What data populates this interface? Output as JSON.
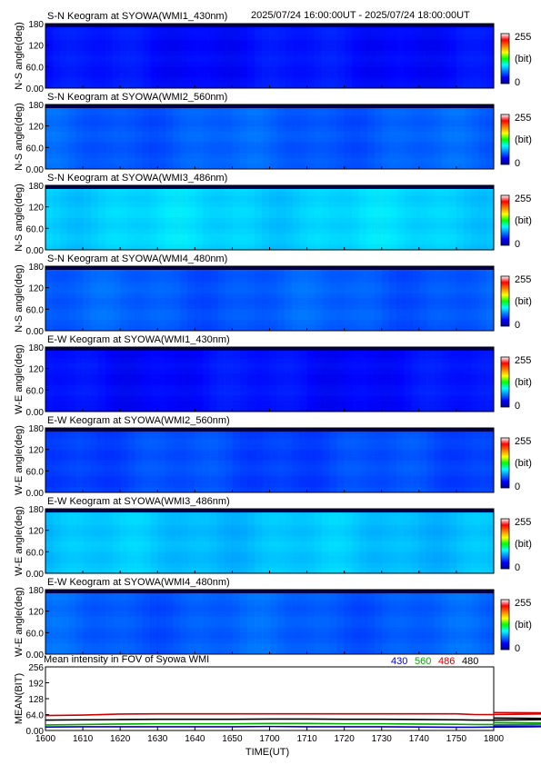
{
  "header": {
    "time_range": "2025/07/24 16:00:00UT - 2025/07/24 18:00:00UT"
  },
  "colorbar": {
    "max_label": "255",
    "unit_label": "(bit)",
    "min_label": "0"
  },
  "chart_data": [
    {
      "type": "heatmap",
      "title": "S-N Keogram at SYOWA(WMI1_430nm)",
      "ylabel": "N-S angle(deg)",
      "yticks": [
        "180",
        "120",
        "60.0",
        "0.00"
      ],
      "ylim": [
        0,
        180
      ],
      "xlim": [
        1600,
        1800
      ],
      "intensity_min": 0,
      "intensity_max": 255,
      "colormap": "jet",
      "typical_intensity": 35
    },
    {
      "type": "heatmap",
      "title": "S-N Keogram at SYOWA(WMI2_560nm)",
      "ylabel": "N-S angle(deg)",
      "yticks": [
        "180",
        "120",
        "60.0",
        "0.00"
      ],
      "ylim": [
        0,
        180
      ],
      "xlim": [
        1600,
        1800
      ],
      "intensity_min": 0,
      "intensity_max": 255,
      "colormap": "jet",
      "typical_intensity": 55
    },
    {
      "type": "heatmap",
      "title": "S-N Keogram at SYOWA(WMI3_486nm)",
      "ylabel": "N-S angle(deg)",
      "yticks": [
        "180",
        "120",
        "60.0",
        "0.00"
      ],
      "ylim": [
        0,
        180
      ],
      "xlim": [
        1600,
        1800
      ],
      "intensity_min": 0,
      "intensity_max": 255,
      "colormap": "jet",
      "typical_intensity": 85
    },
    {
      "type": "heatmap",
      "title": "S-N Keogram at SYOWA(WMI4_480nm)",
      "ylabel": "N-S angle(deg)",
      "yticks": [
        "180",
        "120",
        "60.0",
        "0.00"
      ],
      "ylim": [
        0,
        180
      ],
      "xlim": [
        1600,
        1800
      ],
      "intensity_min": 0,
      "intensity_max": 255,
      "colormap": "jet",
      "typical_intensity": 55
    },
    {
      "type": "heatmap",
      "title": "E-W Keogram at SYOWA(WMI1_430nm)",
      "ylabel": "W-E angle(deg)",
      "yticks": [
        "180",
        "120",
        "60.0",
        "0.00"
      ],
      "ylim": [
        0,
        180
      ],
      "xlim": [
        1600,
        1800
      ],
      "intensity_min": 0,
      "intensity_max": 255,
      "colormap": "jet",
      "typical_intensity": 35
    },
    {
      "type": "heatmap",
      "title": "E-W Keogram at SYOWA(WMI2_560nm)",
      "ylabel": "W-E angle(deg)",
      "yticks": [
        "180",
        "120",
        "60.0",
        "0.00"
      ],
      "ylim": [
        0,
        180
      ],
      "xlim": [
        1600,
        1800
      ],
      "intensity_min": 0,
      "intensity_max": 255,
      "colormap": "jet",
      "typical_intensity": 50
    },
    {
      "type": "heatmap",
      "title": "E-W Keogram at SYOWA(WMI3_486nm)",
      "ylabel": "W-E angle(deg)",
      "yticks": [
        "180",
        "120",
        "60.0",
        "0.00"
      ],
      "ylim": [
        0,
        180
      ],
      "xlim": [
        1600,
        1800
      ],
      "intensity_min": 0,
      "intensity_max": 255,
      "colormap": "jet",
      "typical_intensity": 80
    },
    {
      "type": "heatmap",
      "title": "E-W Keogram at SYOWA(WMI4_480nm)",
      "ylabel": "W-E angle(deg)",
      "yticks": [
        "180",
        "120",
        "60.0",
        "0.00"
      ],
      "ylim": [
        0,
        180
      ],
      "xlim": [
        1600,
        1800
      ],
      "intensity_min": 0,
      "intensity_max": 255,
      "colormap": "jet",
      "typical_intensity": 55
    },
    {
      "type": "line",
      "title": "Mean intensity in FOV of Syowa WMI",
      "xlabel": "TIME(UT)",
      "ylabel": "MEAN(BIT)",
      "xlim": [
        1600,
        1800
      ],
      "ylim": [
        0,
        256
      ],
      "xticks": [
        "1600",
        "1610",
        "1620",
        "1630",
        "1640",
        "1650",
        "1700",
        "1710",
        "1720",
        "1730",
        "1740",
        "1750",
        "1800"
      ],
      "yticks": [
        "256",
        "192",
        "128",
        "64.0",
        "0.00"
      ],
      "x": [
        1600,
        1610,
        1620,
        1630,
        1640,
        1650,
        1700,
        1710,
        1720,
        1730,
        1740,
        1750,
        1755,
        1760,
        1770,
        1780,
        1790,
        1800
      ],
      "series": [
        {
          "name": "430",
          "color": "#0000cc",
          "values": [
            14,
            15,
            15,
            15,
            15,
            15,
            16,
            15,
            15,
            15,
            14,
            13,
            13,
            14,
            15,
            16,
            17,
            18
          ]
        },
        {
          "name": "560",
          "color": "#00aa00",
          "values": [
            22,
            24,
            26,
            27,
            27,
            27,
            28,
            28,
            27,
            27,
            26,
            25,
            24,
            24,
            25,
            27,
            29,
            32
          ]
        },
        {
          "name": "486",
          "color": "#cc0000",
          "values": [
            60,
            62,
            66,
            67,
            67,
            67,
            67,
            67,
            67,
            67,
            67,
            67,
            64,
            64,
            66,
            68,
            70,
            72
          ]
        },
        {
          "name": "480",
          "color": "#000000",
          "values": [
            42,
            43,
            44,
            45,
            45,
            45,
            46,
            46,
            45,
            45,
            44,
            43,
            42,
            42,
            43,
            45,
            47,
            50
          ]
        }
      ]
    }
  ]
}
